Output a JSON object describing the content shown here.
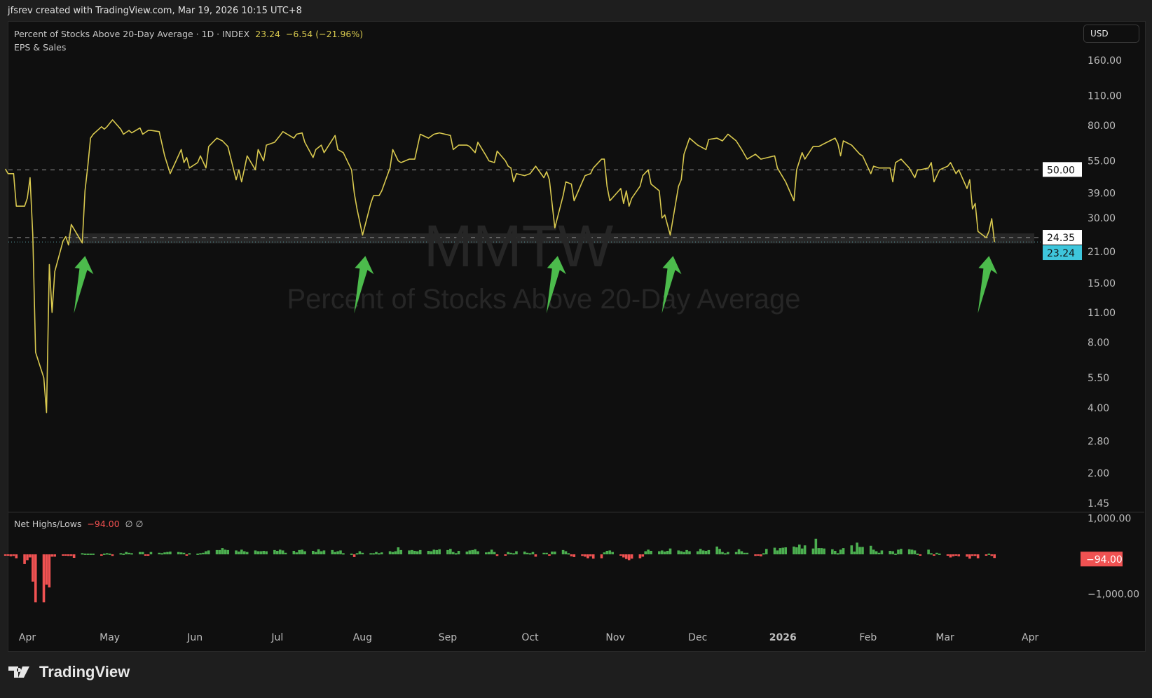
{
  "header": {
    "attribution": "jfsrev created with TradingView.com, Mar 19, 2026 10:15 UTC+8"
  },
  "legend": {
    "symbol_desc": "Percent of Stocks Above 20-Day Average · 1D · INDEX",
    "last": "23.24",
    "change": "−6.54 (−21.96%)",
    "indicator": "EPS & Sales"
  },
  "currency_button": "USD",
  "watermark": {
    "symbol": "MMTW",
    "description": "Percent of Stocks Above 20-Day Average"
  },
  "footer": {
    "brand": "TradingView"
  },
  "colors": {
    "line": "#d9c94f",
    "up": "#4caf50",
    "down": "#f05252",
    "arrow": "#4cbb4c",
    "last_badge": "#3ec6dc",
    "background": "#0f0f0f"
  },
  "chart_data": [
    {
      "type": "line",
      "series_label": "Percent of Stocks Above 20-Day Average",
      "yscale": "log",
      "ylim": [
        1.45,
        160
      ],
      "yticks": [
        "160.00",
        "110.00",
        "80.00",
        "55.00",
        "39.00",
        "30.00",
        "21.00",
        "15.00",
        "11.00",
        "8.00",
        "5.50",
        "4.00",
        "2.80",
        "2.00",
        "1.45"
      ],
      "ytick_values": [
        160,
        110,
        80,
        55,
        39,
        30,
        21,
        15,
        11,
        8,
        5.5,
        4,
        2.8,
        2,
        1.45
      ],
      "xticks": [
        {
          "label": "Apr",
          "date": "2025-04-01"
        },
        {
          "label": "May",
          "date": "2025-05-01"
        },
        {
          "label": "Jun",
          "date": "2025-06-01"
        },
        {
          "label": "Jul",
          "date": "2025-07-01"
        },
        {
          "label": "Aug",
          "date": "2025-08-01"
        },
        {
          "label": "Sep",
          "date": "2025-09-01"
        },
        {
          "label": "Oct",
          "date": "2025-10-01"
        },
        {
          "label": "Nov",
          "date": "2025-11-01"
        },
        {
          "label": "Dec",
          "date": "2025-12-01"
        },
        {
          "label": "2026",
          "date": "2026-01-01",
          "bold": true
        },
        {
          "label": "Feb",
          "date": "2026-02-01"
        },
        {
          "label": "Mar",
          "date": "2026-03-01"
        },
        {
          "label": "Apr",
          "date": "2026-04-01"
        }
      ],
      "xlim": [
        "2025-03-21",
        "2026-04-08"
      ],
      "horizontal_lines": [
        {
          "value": 50,
          "label": "50.00",
          "style": "dashed"
        },
        {
          "value": 24.35,
          "label": "24.35",
          "style": "dashed"
        },
        {
          "value": 23.24,
          "label": "23.24",
          "style": "dotted",
          "last": true
        }
      ],
      "points": [
        [
          "2025-03-24",
          50.5
        ],
        [
          "2025-03-25",
          48
        ],
        [
          "2025-03-27",
          48
        ],
        [
          "2025-03-28",
          34
        ],
        [
          "2025-03-31",
          34
        ],
        [
          "2025-04-01",
          37
        ],
        [
          "2025-04-02",
          46
        ],
        [
          "2025-04-03",
          25
        ],
        [
          "2025-04-04",
          7.2
        ],
        [
          "2025-04-07",
          5.5
        ],
        [
          "2025-04-08",
          3.8
        ],
        [
          "2025-04-09",
          18.3
        ],
        [
          "2025-04-10",
          11
        ],
        [
          "2025-04-11",
          17
        ],
        [
          "2025-04-14",
          23.5
        ],
        [
          "2025-04-15",
          24.6
        ],
        [
          "2025-04-16",
          22.5
        ],
        [
          "2025-04-17",
          28
        ],
        [
          "2025-04-21",
          23
        ],
        [
          "2025-04-22",
          40
        ],
        [
          "2025-04-23",
          52
        ],
        [
          "2025-04-24",
          70
        ],
        [
          "2025-04-25",
          73
        ],
        [
          "2025-04-28",
          79
        ],
        [
          "2025-04-29",
          77
        ],
        [
          "2025-04-30",
          79
        ],
        [
          "2025-05-02",
          85
        ],
        [
          "2025-05-05",
          77
        ],
        [
          "2025-05-06",
          73
        ],
        [
          "2025-05-08",
          76
        ],
        [
          "2025-05-09",
          74
        ],
        [
          "2025-05-12",
          78
        ],
        [
          "2025-05-13",
          73
        ],
        [
          "2025-05-15",
          76
        ],
        [
          "2025-05-16",
          76
        ],
        [
          "2025-05-19",
          75
        ],
        [
          "2025-05-21",
          58
        ],
        [
          "2025-05-23",
          48
        ],
        [
          "2025-05-27",
          62
        ],
        [
          "2025-05-28",
          54
        ],
        [
          "2025-05-29",
          57
        ],
        [
          "2025-05-30",
          51
        ],
        [
          "2025-06-02",
          54
        ],
        [
          "2025-06-03",
          58
        ],
        [
          "2025-06-05",
          51
        ],
        [
          "2025-06-06",
          64
        ],
        [
          "2025-06-09",
          70
        ],
        [
          "2025-06-11",
          68
        ],
        [
          "2025-06-13",
          64
        ],
        [
          "2025-06-16",
          45
        ],
        [
          "2025-06-17",
          50
        ],
        [
          "2025-06-18",
          44
        ],
        [
          "2025-06-20",
          58
        ],
        [
          "2025-06-23",
          50
        ],
        [
          "2025-06-24",
          62
        ],
        [
          "2025-06-26",
          55
        ],
        [
          "2025-06-27",
          65
        ],
        [
          "2025-06-30",
          67
        ],
        [
          "2025-07-02",
          72
        ],
        [
          "2025-07-03",
          75
        ],
        [
          "2025-07-07",
          70
        ],
        [
          "2025-07-08",
          73
        ],
        [
          "2025-07-10",
          74
        ],
        [
          "2025-07-11",
          67
        ],
        [
          "2025-07-14",
          57
        ],
        [
          "2025-07-15",
          62
        ],
        [
          "2025-07-17",
          65
        ],
        [
          "2025-07-18",
          60
        ],
        [
          "2025-07-22",
          72
        ],
        [
          "2025-07-23",
          62
        ],
        [
          "2025-07-25",
          60
        ],
        [
          "2025-07-28",
          50
        ],
        [
          "2025-07-29",
          39
        ],
        [
          "2025-07-30",
          33
        ],
        [
          "2025-08-01",
          25
        ],
        [
          "2025-08-04",
          35
        ],
        [
          "2025-08-05",
          38
        ],
        [
          "2025-08-07",
          38
        ],
        [
          "2025-08-08",
          40
        ],
        [
          "2025-08-11",
          51
        ],
        [
          "2025-08-12",
          62
        ],
        [
          "2025-08-14",
          55
        ],
        [
          "2025-08-15",
          54
        ],
        [
          "2025-08-18",
          56
        ],
        [
          "2025-08-20",
          56
        ],
        [
          "2025-08-22",
          73
        ],
        [
          "2025-08-25",
          70
        ],
        [
          "2025-08-27",
          73
        ],
        [
          "2025-08-29",
          74
        ],
        [
          "2025-09-02",
          72
        ],
        [
          "2025-09-03",
          62
        ],
        [
          "2025-09-05",
          65
        ],
        [
          "2025-09-08",
          65
        ],
        [
          "2025-09-09",
          64
        ],
        [
          "2025-09-11",
          60
        ],
        [
          "2025-09-12",
          67
        ],
        [
          "2025-09-15",
          58
        ],
        [
          "2025-09-16",
          55
        ],
        [
          "2025-09-18",
          54
        ],
        [
          "2025-09-19",
          61
        ],
        [
          "2025-09-22",
          55
        ],
        [
          "2025-09-23",
          52
        ],
        [
          "2025-09-24",
          51
        ],
        [
          "2025-09-25",
          44
        ],
        [
          "2025-09-26",
          48
        ],
        [
          "2025-09-29",
          47
        ],
        [
          "2025-10-01",
          48
        ],
        [
          "2025-10-03",
          52
        ],
        [
          "2025-10-06",
          46
        ],
        [
          "2025-10-07",
          49
        ],
        [
          "2025-10-08",
          45
        ],
        [
          "2025-10-10",
          27
        ],
        [
          "2025-10-13",
          38
        ],
        [
          "2025-10-14",
          44
        ],
        [
          "2025-10-16",
          43
        ],
        [
          "2025-10-17",
          36
        ],
        [
          "2025-10-20",
          44
        ],
        [
          "2025-10-21",
          47
        ],
        [
          "2025-10-23",
          48
        ],
        [
          "2025-10-24",
          51
        ],
        [
          "2025-10-27",
          56
        ],
        [
          "2025-10-28",
          56
        ],
        [
          "2025-10-29",
          42
        ],
        [
          "2025-10-30",
          36
        ],
        [
          "2025-11-03",
          41
        ],
        [
          "2025-11-04",
          35
        ],
        [
          "2025-11-05",
          40
        ],
        [
          "2025-11-06",
          34
        ],
        [
          "2025-11-07",
          37
        ],
        [
          "2025-11-10",
          42
        ],
        [
          "2025-11-11",
          47
        ],
        [
          "2025-11-13",
          50
        ],
        [
          "2025-11-14",
          43
        ],
        [
          "2025-11-17",
          40
        ],
        [
          "2025-11-18",
          30
        ],
        [
          "2025-11-19",
          31
        ],
        [
          "2025-11-21",
          25
        ],
        [
          "2025-11-24",
          42
        ],
        [
          "2025-11-25",
          45
        ],
        [
          "2025-11-26",
          59
        ],
        [
          "2025-11-28",
          70
        ],
        [
          "2025-12-01",
          65
        ],
        [
          "2025-12-04",
          62
        ],
        [
          "2025-12-05",
          69
        ],
        [
          "2025-12-08",
          70
        ],
        [
          "2025-12-10",
          68
        ],
        [
          "2025-12-12",
          73
        ],
        [
          "2025-12-15",
          68
        ],
        [
          "2025-12-17",
          62
        ],
        [
          "2025-12-19",
          56
        ],
        [
          "2025-12-22",
          59
        ],
        [
          "2025-12-24",
          56
        ],
        [
          "2025-12-29",
          58
        ],
        [
          "2025-12-30",
          51
        ],
        [
          "2026-01-02",
          44
        ],
        [
          "2026-01-05",
          36
        ],
        [
          "2026-01-06",
          50
        ],
        [
          "2026-01-08",
          60
        ],
        [
          "2026-01-09",
          56
        ],
        [
          "2026-01-12",
          64
        ],
        [
          "2026-01-14",
          64
        ],
        [
          "2026-01-15",
          65
        ],
        [
          "2026-01-16",
          66
        ],
        [
          "2026-01-20",
          70
        ],
        [
          "2026-01-21",
          66
        ],
        [
          "2026-01-22",
          58
        ],
        [
          "2026-01-23",
          68
        ],
        [
          "2026-01-26",
          65
        ],
        [
          "2026-01-29",
          59
        ],
        [
          "2026-01-30",
          58
        ],
        [
          "2026-02-02",
          48
        ],
        [
          "2026-02-03",
          52
        ],
        [
          "2026-02-05",
          51
        ],
        [
          "2026-02-09",
          51
        ],
        [
          "2026-02-10",
          44
        ],
        [
          "2026-02-11",
          54
        ],
        [
          "2026-02-13",
          56
        ],
        [
          "2026-02-16",
          51
        ],
        [
          "2026-02-18",
          46
        ],
        [
          "2026-02-19",
          50
        ],
        [
          "2026-02-20",
          50
        ],
        [
          "2026-02-23",
          51
        ],
        [
          "2026-02-24",
          54
        ],
        [
          "2026-02-25",
          44
        ],
        [
          "2026-02-27",
          50
        ],
        [
          "2026-03-02",
          52
        ],
        [
          "2026-03-03",
          54
        ],
        [
          "2026-03-05",
          48
        ],
        [
          "2026-03-06",
          50
        ],
        [
          "2026-03-09",
          41
        ],
        [
          "2026-03-10",
          45
        ],
        [
          "2026-03-11",
          33
        ],
        [
          "2026-03-12",
          35
        ],
        [
          "2026-03-13",
          26
        ],
        [
          "2026-03-16",
          24.3
        ],
        [
          "2026-03-17",
          26
        ],
        [
          "2026-03-18",
          29.78
        ],
        [
          "2026-03-19",
          23.24
        ]
      ],
      "annotations": [
        {
          "type": "arrow",
          "points_to": "2025-04-21"
        },
        {
          "type": "arrow",
          "points_to": "2025-08-01"
        },
        {
          "type": "arrow",
          "points_to": "2025-10-10"
        },
        {
          "type": "arrow",
          "points_to": "2025-11-21"
        },
        {
          "type": "arrow",
          "points_to": "2026-03-16"
        }
      ]
    },
    {
      "type": "bar",
      "title": "Net Highs/Lows",
      "last": "−94.00",
      "extra": "∅ ∅",
      "yticks": [
        "1,000.00",
        "−1,000.00"
      ],
      "ytick_values": [
        1000,
        -1000
      ],
      "last_badge": "−94.00",
      "start": "2025-03-24",
      "end": "2026-03-19",
      "frequency": "weekdays",
      "values": [
        -30,
        -30,
        -50,
        -40,
        -100,
        -250,
        -150,
        -80,
        -700,
        -1230,
        -1230,
        -780,
        -850,
        -60,
        -60,
        -20,
        -20,
        -40,
        -40,
        -90,
        30,
        20,
        20,
        20,
        20,
        -20,
        20,
        30,
        20,
        -40,
        30,
        20,
        60,
        40,
        30,
        60,
        60,
        -20,
        -20,
        60,
        40,
        30,
        50,
        60,
        70,
        60,
        50,
        40,
        -10,
        30,
        20,
        30,
        40,
        80,
        100,
        110,
        110,
        160,
        120,
        110,
        100,
        70,
        120,
        80,
        60,
        100,
        80,
        80,
        90,
        80,
        110,
        90,
        120,
        100,
        40,
        90,
        50,
        110,
        120,
        80,
        90,
        60,
        130,
        80,
        100,
        110,
        60,
        80,
        100,
        30,
        20,
        -70,
        30,
        80,
        40,
        30,
        30,
        60,
        30,
        50,
        80,
        60,
        80,
        180,
        110,
        100,
        110,
        90,
        80,
        110,
        90,
        80,
        120,
        110,
        130,
        110,
        140,
        60,
        30,
        90,
        70,
        100,
        110,
        130,
        80,
        50,
        60,
        120,
        60,
        -40,
        -20,
        60,
        40,
        30,
        80,
        70,
        40,
        30,
        60,
        -60,
        40,
        40,
        -30,
        70,
        70,
        110,
        80,
        30,
        -50,
        -70,
        -40,
        -60,
        -100,
        -50,
        -110,
        -100,
        50,
        90,
        100,
        60,
        -30,
        -80,
        -120,
        -150,
        -110,
        -100,
        -60,
        80,
        120,
        90,
        80,
        100,
        70,
        90,
        150,
        100,
        80,
        60,
        110,
        80,
        80,
        140,
        100,
        90,
        110,
        200,
        140,
        60,
        30,
        60,
        60,
        130,
        80,
        40,
        40,
        -40,
        -30,
        -50,
        30,
        140,
        170,
        100,
        160,
        170,
        180,
        200,
        180,
        250,
        150,
        230,
        150,
        400,
        160,
        160,
        150,
        130,
        90,
        30,
        120,
        160,
        230,
        70,
        300,
        190,
        190,
        220,
        120,
        80,
        40,
        100,
        90,
        80,
        20,
        120,
        140,
        130,
        120,
        100,
        20,
        -30,
        120,
        30,
        -20,
        40,
        20,
        -30,
        -80,
        -50,
        -20,
        -50,
        -60,
        -110,
        -40,
        -40,
        -100,
        -30,
        20,
        -40,
        -94
      ]
    }
  ]
}
